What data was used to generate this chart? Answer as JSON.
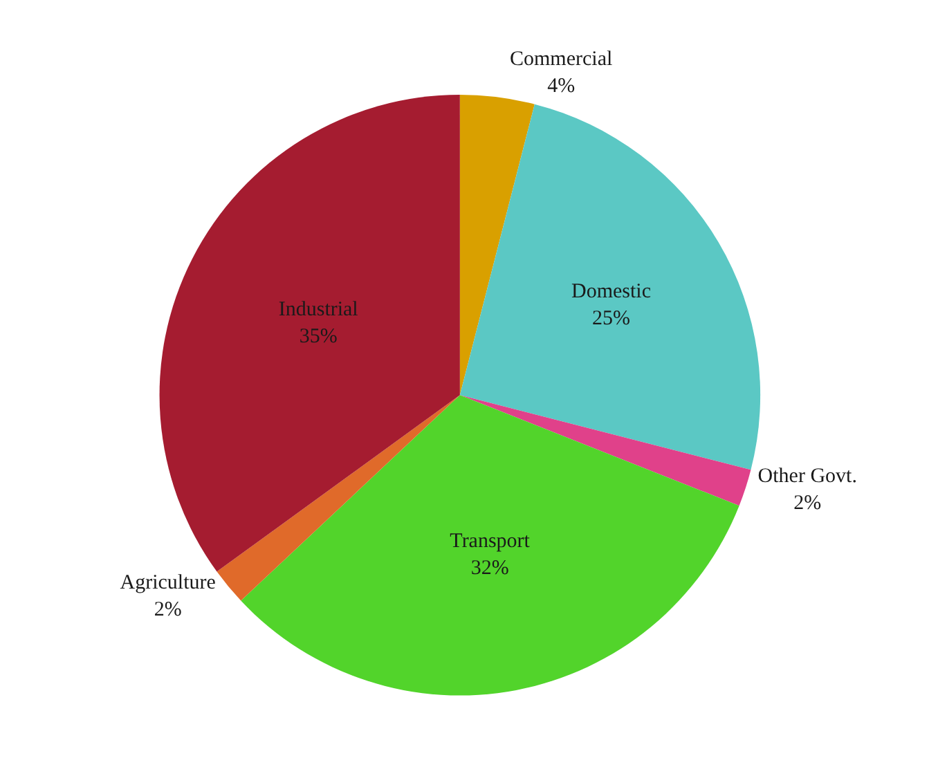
{
  "chart_data": {
    "type": "pie",
    "categories": [
      "Commercial",
      "Domestic",
      "Other Govt.",
      "Transport",
      "Agriculture",
      "Industrial"
    ],
    "values": [
      4,
      25,
      2,
      32,
      2,
      35
    ],
    "value_labels": [
      "4%",
      "25%",
      "2%",
      "32%",
      "2%",
      "35%"
    ],
    "colors": [
      "#d9a000",
      "#5bc8c4",
      "#e0418a",
      "#52d42b",
      "#e06a2a",
      "#a51c30"
    ],
    "legend": false
  }
}
